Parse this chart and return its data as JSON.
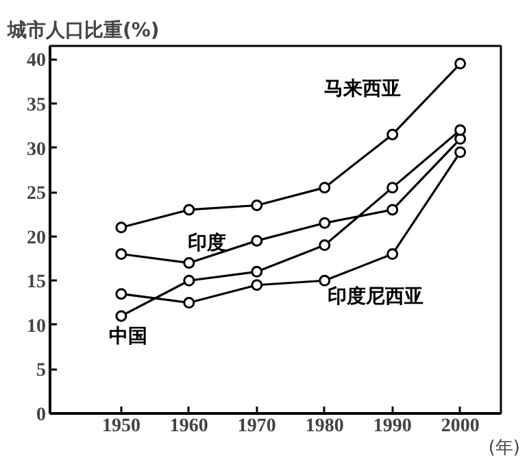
{
  "chart_data": {
    "type": "line",
    "ylabel": "城市人口比重(%)",
    "xlabel": "(年)",
    "x": [
      1950,
      1960,
      1970,
      1980,
      1990,
      2000
    ],
    "xlim": [
      1939.5,
      2006
    ],
    "ylim": [
      0,
      41.5
    ],
    "xticks": [
      1950,
      1960,
      1970,
      1980,
      1990,
      2000
    ],
    "yticks": [
      0,
      5,
      10,
      15,
      20,
      25,
      30,
      35,
      40
    ],
    "marker": "circle",
    "line_style": "solid",
    "series": [
      {
        "name": "马来西亚",
        "color": "#000000",
        "values": [
          21,
          23,
          23.5,
          25.5,
          31.5,
          39.5
        ]
      },
      {
        "name": "印度",
        "color": "#000000",
        "values": [
          18,
          17,
          19.5,
          21.5,
          23,
          31
        ]
      },
      {
        "name": "印度尼西亚",
        "color": "#000000",
        "values": [
          13.5,
          12.5,
          14.5,
          15,
          18,
          29.5
        ]
      },
      {
        "name": "中国",
        "color": "#000000",
        "values": [
          11,
          15,
          16,
          19,
          25.5,
          32
        ]
      }
    ]
  }
}
